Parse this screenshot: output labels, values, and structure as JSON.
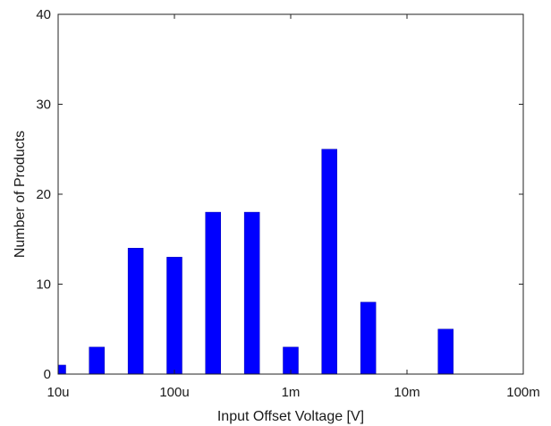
{
  "chart_data": {
    "type": "bar",
    "xscale": "log",
    "xlim": [
      1e-05,
      0.1
    ],
    "ylim": [
      0,
      40
    ],
    "xlabel": "Input Offset Voltage [V]",
    "ylabel": "Number of Products",
    "grid": false,
    "bar_color": "#0000ff",
    "x_ticks": [
      {
        "value": 1e-05,
        "label": "10u"
      },
      {
        "value": 0.0001,
        "label": "100u"
      },
      {
        "value": 0.001,
        "label": "1m"
      },
      {
        "value": 0.01,
        "label": "10m"
      },
      {
        "value": 0.1,
        "label": "100m"
      }
    ],
    "y_ticks": [
      {
        "value": 0,
        "label": "0"
      },
      {
        "value": 10,
        "label": "10"
      },
      {
        "value": 20,
        "label": "20"
      },
      {
        "value": 30,
        "label": "30"
      },
      {
        "value": 40,
        "label": "40"
      }
    ],
    "x": [
      1e-05,
      2.15e-05,
      4.64e-05,
      0.0001,
      0.000215,
      0.000464,
      0.001,
      0.00215,
      0.00464,
      0.01,
      0.0215,
      0.0464
    ],
    "values": [
      1,
      3,
      14,
      13,
      18,
      18,
      3,
      25,
      8,
      0,
      5,
      0
    ]
  }
}
